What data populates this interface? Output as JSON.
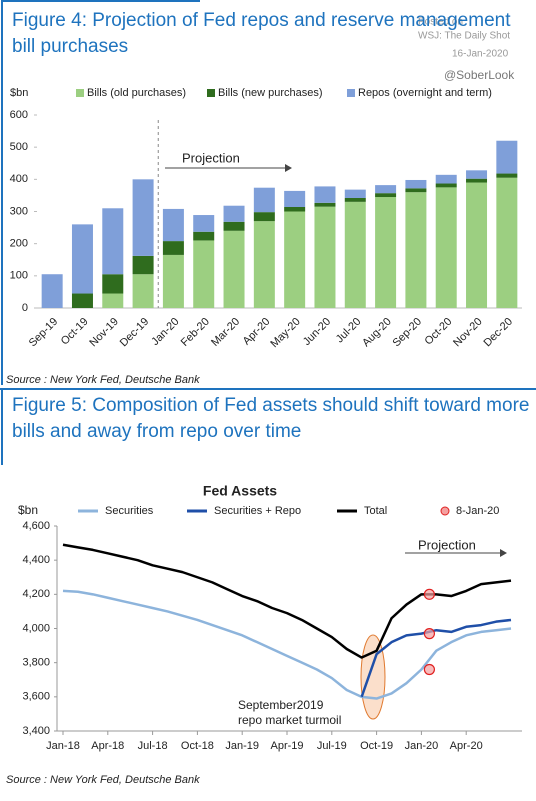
{
  "watermark": {
    "line1": "Posted on",
    "line2": "WSJ: The Daily Shot",
    "date": "16-Jan-2020",
    "handle": "@SoberLook"
  },
  "chart_data": [
    {
      "type": "bar",
      "stacked": true,
      "figure_title": "Figure 4: Projection of Fed repos and reserve management bill purchases",
      "y_label": "$bn",
      "annotation": "Projection",
      "source": "Source : New York Fed, Deutsche Bank",
      "categories": [
        "Sep-19",
        "Oct-19",
        "Nov-19",
        "Dec-19",
        "Jan-20",
        "Feb-20",
        "Mar-20",
        "Apr-20",
        "May-20",
        "Jun-20",
        "Jul-20",
        "Aug-20",
        "Sep-20",
        "Oct-20",
        "Nov-20",
        "Dec-20"
      ],
      "series": [
        {
          "name": "Bills (old purchases)",
          "color": "#9ccf81",
          "values": [
            0,
            0,
            45,
            105,
            165,
            210,
            240,
            270,
            300,
            315,
            330,
            345,
            360,
            375,
            390,
            405
          ]
        },
        {
          "name": "Bills (new purchases)",
          "color": "#2f6c1e",
          "values": [
            0,
            45,
            60,
            57,
            43,
            27,
            28,
            28,
            14,
            12,
            12,
            12,
            12,
            12,
            12,
            13
          ]
        },
        {
          "name": "Repos (overnight and term)",
          "color": "#7f9fd9",
          "values": [
            105,
            215,
            205,
            238,
            100,
            52,
            50,
            76,
            50,
            51,
            26,
            25,
            26,
            27,
            26,
            102
          ]
        }
      ],
      "ylim": [
        0,
        600
      ],
      "yticks": [
        0,
        100,
        200,
        300,
        400,
        500,
        600
      ],
      "grid": false
    },
    {
      "type": "line",
      "figure_title": "Figure 5: Composition of Fed assets should shift toward more bills and away from repo over time",
      "title": "Fed Assets",
      "y_label": "$bn",
      "annotation": "Projection",
      "annotation2": [
        "September2019",
        "repo market turmoil"
      ],
      "source": "Source : New York Fed, Deutsche Bank",
      "x": [
        "2018-01",
        "2018-02",
        "2018-03",
        "2018-04",
        "2018-05",
        "2018-06",
        "2018-07",
        "2018-08",
        "2018-09",
        "2018-10",
        "2018-11",
        "2018-12",
        "2019-01",
        "2019-02",
        "2019-03",
        "2019-04",
        "2019-05",
        "2019-06",
        "2019-07",
        "2019-08",
        "2019-09",
        "2019-10",
        "2019-11",
        "2019-12",
        "2020-01",
        "2020-02",
        "2020-03",
        "2020-04",
        "2020-05",
        "2020-06",
        "2020-07"
      ],
      "series": [
        {
          "name": "Securities",
          "color": "#8db4dc",
          "values": [
            4220,
            4215,
            4200,
            4180,
            4160,
            4140,
            4120,
            4100,
            4075,
            4050,
            4020,
            3990,
            3960,
            3920,
            3880,
            3840,
            3800,
            3760,
            3710,
            3640,
            3600,
            3590,
            3620,
            3680,
            3760,
            3870,
            3920,
            3960,
            3980,
            3990,
            4000
          ]
        },
        {
          "name": "Securities + Repo",
          "color": "#1f4fa8",
          "values": [
            null,
            null,
            null,
            null,
            null,
            null,
            null,
            null,
            null,
            null,
            null,
            null,
            null,
            null,
            null,
            null,
            null,
            null,
            null,
            null,
            3600,
            3850,
            3920,
            3960,
            3970,
            3990,
            3980,
            4010,
            4020,
            4040,
            4050
          ]
        },
        {
          "name": "Total",
          "color": "#000000",
          "values": [
            4490,
            4475,
            4460,
            4440,
            4420,
            4400,
            4370,
            4350,
            4330,
            4300,
            4270,
            4230,
            4190,
            4160,
            4120,
            4090,
            4050,
            4000,
            3950,
            3880,
            3830,
            3870,
            4060,
            4140,
            4200,
            4200,
            4190,
            4220,
            4260,
            4270,
            4280
          ]
        },
        {
          "name": "8-Jan-20",
          "type": "scatter",
          "color": "#e02020",
          "x": [
            "2020-01",
            "2020-01",
            "2020-01"
          ],
          "values": [
            4200,
            3970,
            3760
          ]
        }
      ],
      "xlim": [
        "2018-01",
        "2020-07"
      ],
      "xticks": [
        {
          "value": "2018-01",
          "label": "Jan-18"
        },
        {
          "value": "2018-04",
          "label": "Apr-18"
        },
        {
          "value": "2018-07",
          "label": "Jul-18"
        },
        {
          "value": "2018-10",
          "label": "Oct-18"
        },
        {
          "value": "2019-01",
          "label": "Jan-19"
        },
        {
          "value": "2019-04",
          "label": "Apr-19"
        },
        {
          "value": "2019-07",
          "label": "Jul-19"
        },
        {
          "value": "2019-10",
          "label": "Oct-19"
        },
        {
          "value": "2020-01",
          "label": "Jan-20"
        },
        {
          "value": "2020-04",
          "label": "Apr-20"
        }
      ],
      "ylim": [
        3400,
        4600
      ],
      "yticks": [
        {
          "value": 3400,
          "label": "3,400"
        },
        {
          "value": 3600,
          "label": "3,600"
        },
        {
          "value": 3800,
          "label": "3,800"
        },
        {
          "value": 4000,
          "label": "4,000"
        },
        {
          "value": 4200,
          "label": "4,200"
        },
        {
          "value": 4400,
          "label": "4,400"
        },
        {
          "value": 4600,
          "label": "4,600"
        }
      ],
      "grid": false
    }
  ]
}
